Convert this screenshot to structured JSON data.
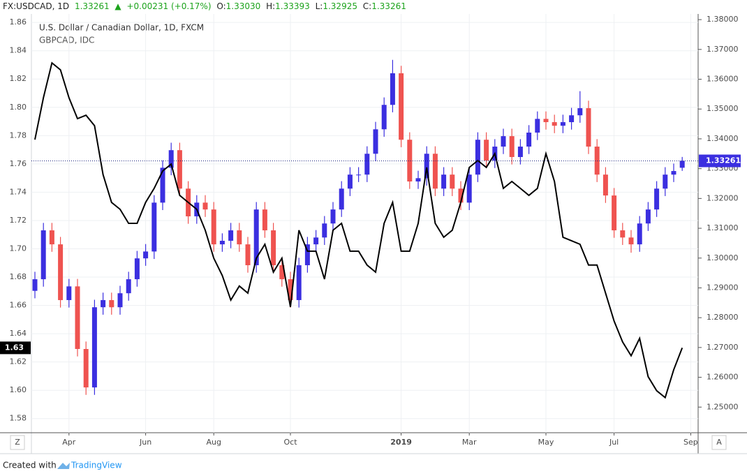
{
  "header": {
    "symbol": "FX:USDCAD, 1D",
    "last": "1.33261",
    "change": "+0.00231 (+0.17%)",
    "o_key": "O:",
    "o": "1.33030",
    "h_key": "H:",
    "h": "1.33393",
    "l_key": "L:",
    "l": "1.32925",
    "c_key": "C:",
    "c": "1.33261"
  },
  "controls": {
    "left_scale": "Z",
    "right_scale": "A"
  },
  "footer": {
    "text": "Created with",
    "brand": "TradingView"
  },
  "chart_data": {
    "type": "candlestick",
    "grid": true,
    "categories": [
      null,
      null,
      null,
      null,
      "Apr",
      null,
      null,
      null,
      null,
      null,
      null,
      null,
      null,
      "Jun",
      null,
      null,
      null,
      null,
      null,
      null,
      null,
      "Aug",
      null,
      null,
      null,
      null,
      null,
      null,
      null,
      null,
      "Oct",
      null,
      null,
      null,
      null,
      null,
      null,
      null,
      null,
      null,
      null,
      null,
      null,
      "2019",
      null,
      null,
      null,
      null,
      null,
      null,
      null,
      "Mar",
      null,
      null,
      null,
      null,
      null,
      null,
      null,
      null,
      "May",
      null,
      null,
      null,
      null,
      null,
      null,
      null,
      "Jul",
      null,
      null,
      null,
      null,
      null,
      null,
      null,
      null,
      "Sep"
    ],
    "ylim": [
      1.57,
      1.866
    ],
    "yticks": [
      1.58,
      {
        "value": 1.6,
        "label": "1.60"
      },
      1.62,
      1.64,
      1.66,
      1.68,
      {
        "value": 1.7,
        "label": "1.70"
      },
      1.72,
      1.74,
      1.76,
      1.78,
      {
        "value": 1.8,
        "label": "1.80"
      },
      1.82,
      1.84,
      1.86
    ],
    "y2lim": [
      1.2414,
      1.3819
    ],
    "y2ticks": [
      {
        "value": 1.25,
        "label": "1.25000"
      },
      {
        "value": 1.26,
        "label": "1.26000"
      },
      {
        "value": 1.27,
        "label": "1.27000"
      },
      {
        "value": 1.28,
        "label": "1.28000"
      },
      {
        "value": 1.29,
        "label": "1.29000"
      },
      {
        "value": 1.3,
        "label": "1.30000"
      },
      {
        "value": 1.31,
        "label": "1.31000"
      },
      {
        "value": 1.32,
        "label": "1.32000"
      },
      {
        "value": 1.33,
        "label": "1.33000"
      },
      {
        "value": 1.34,
        "label": "1.34000"
      },
      {
        "value": 1.35,
        "label": "1.35000"
      },
      {
        "value": 1.36,
        "label": "1.36000"
      },
      {
        "value": 1.37,
        "label": "1.37000"
      },
      {
        "value": 1.38,
        "label": "1.38000"
      }
    ],
    "series": [
      {
        "name": "U.S. Dollar / Canadian Dollar, 1D, FXCM",
        "type": "candlestick",
        "axis": "y2",
        "up_color": "#3b2fe0",
        "down_color": "#ef5350",
        "open": [
          1.289,
          1.2929,
          1.3093,
          1.3046,
          1.2859,
          1.2905,
          1.2695,
          1.2566,
          1.2835,
          1.2859,
          1.2835,
          1.2882,
          1.2929,
          1.2999,
          1.3022,
          1.3186,
          1.3303,
          1.3362,
          1.3233,
          1.314,
          1.3186,
          1.3163,
          1.3046,
          1.3058,
          1.3093,
          1.3046,
          1.2976,
          1.3163,
          1.3093,
          1.2976,
          1.2929,
          1.2859,
          1.2976,
          1.3046,
          1.3069,
          1.3116,
          1.3163,
          1.3233,
          1.328,
          1.328,
          1.335,
          1.3432,
          1.3514,
          1.362,
          1.3397,
          1.3257,
          1.3268,
          1.335,
          1.3233,
          1.328,
          1.3233,
          1.3186,
          1.328,
          1.3397,
          1.3327,
          1.3374,
          1.3409,
          1.3339,
          1.3374,
          1.3421,
          1.3467,
          1.3456,
          1.3444,
          1.3456,
          1.3479,
          1.3503,
          1.3374,
          1.328,
          1.321,
          1.3093,
          1.3069,
          1.3046,
          1.3116,
          1.3163,
          1.3233,
          1.328,
          1.3303,
          null
        ],
        "high": [
          1.2954,
          1.3118,
          1.3118,
          1.3071,
          1.293,
          1.293,
          1.272,
          1.286,
          1.2884,
          1.2884,
          1.2907,
          1.2954,
          1.3024,
          1.3047,
          1.3211,
          1.3328,
          1.3387,
          1.3387,
          1.3258,
          1.3211,
          1.3211,
          1.3188,
          1.3083,
          1.3118,
          1.3118,
          1.3071,
          1.3188,
          1.3188,
          1.3118,
          1.3001,
          1.2954,
          1.3001,
          1.3071,
          1.3094,
          1.3141,
          1.3188,
          1.3258,
          1.3305,
          1.3305,
          1.3375,
          1.3457,
          1.3539,
          1.3665,
          1.3645,
          1.3422,
          1.3293,
          1.3375,
          1.3375,
          1.3305,
          1.3305,
          1.3258,
          1.3305,
          1.3422,
          1.3422,
          1.3399,
          1.3434,
          1.3434,
          1.3399,
          1.3446,
          1.3492,
          1.3492,
          1.3481,
          1.3481,
          1.3504,
          1.356,
          1.3528,
          1.3399,
          1.3305,
          1.3235,
          1.3118,
          1.3094,
          1.3141,
          1.3188,
          1.3258,
          1.3305,
          1.3317,
          1.33393,
          null
        ],
        "low": [
          1.2865,
          1.2904,
          1.3021,
          1.2834,
          1.2834,
          1.267,
          1.2541,
          1.2541,
          1.281,
          1.281,
          1.281,
          1.2857,
          1.2904,
          1.2974,
          1.2997,
          1.3161,
          1.3278,
          1.3208,
          1.3115,
          1.3115,
          1.3138,
          1.3021,
          1.3021,
          1.3033,
          1.3021,
          1.2951,
          1.2951,
          1.3068,
          1.2951,
          1.2904,
          1.2834,
          1.2834,
          1.2951,
          1.3021,
          1.3044,
          1.3091,
          1.3138,
          1.3208,
          1.3255,
          1.3255,
          1.3325,
          1.3407,
          1.3489,
          1.3372,
          1.3232,
          1.3232,
          1.3243,
          1.3208,
          1.3208,
          1.3208,
          1.3161,
          1.3161,
          1.3255,
          1.3302,
          1.3302,
          1.3349,
          1.3314,
          1.3314,
          1.3349,
          1.3396,
          1.3431,
          1.3419,
          1.3419,
          1.3431,
          1.3454,
          1.3349,
          1.3255,
          1.3185,
          1.3068,
          1.3044,
          1.3018,
          1.3021,
          1.3091,
          1.3138,
          1.3208,
          1.3255,
          1.32925,
          null
        ],
        "close": [
          1.2929,
          1.3093,
          1.3046,
          1.2859,
          1.2905,
          1.2695,
          1.2566,
          1.2835,
          1.2859,
          1.2835,
          1.2882,
          1.2929,
          1.2999,
          1.3022,
          1.3186,
          1.3303,
          1.3362,
          1.3233,
          1.314,
          1.3186,
          1.3163,
          1.3046,
          1.3058,
          1.3093,
          1.3046,
          1.2976,
          1.3163,
          1.3093,
          1.2976,
          1.2929,
          1.2859,
          1.2976,
          1.3046,
          1.3069,
          1.3116,
          1.3163,
          1.3233,
          1.328,
          1.328,
          1.335,
          1.3432,
          1.3514,
          1.362,
          1.3397,
          1.3257,
          1.3268,
          1.335,
          1.3233,
          1.328,
          1.3233,
          1.3186,
          1.328,
          1.3397,
          1.3327,
          1.3374,
          1.3409,
          1.3339,
          1.3374,
          1.3421,
          1.3467,
          1.3456,
          1.3444,
          1.3456,
          1.3479,
          1.3503,
          1.3374,
          1.328,
          1.321,
          1.3093,
          1.3069,
          1.3046,
          1.3116,
          1.3163,
          1.3233,
          1.328,
          1.3292,
          1.33261,
          null
        ]
      },
      {
        "name": "GBPCAD, IDC",
        "type": "line",
        "color": "#000000",
        "values": [
          1.7772,
          1.8068,
          1.8314,
          1.8265,
          1.8068,
          1.792,
          1.7944,
          1.787,
          1.7525,
          1.7328,
          1.7279,
          1.718,
          1.718,
          1.7328,
          1.7427,
          1.755,
          1.7599,
          1.7378,
          1.7328,
          1.7279,
          1.7131,
          1.6934,
          1.6811,
          1.6638,
          1.6737,
          1.6687,
          1.6934,
          1.7032,
          1.6835,
          1.6934,
          1.6589,
          1.7131,
          1.6983,
          1.6983,
          1.6786,
          1.7131,
          1.718,
          1.6983,
          1.6983,
          1.6885,
          1.6835,
          1.718,
          1.7328,
          1.6983,
          1.6983,
          1.718,
          1.7575,
          1.718,
          1.7082,
          1.7131,
          1.7328,
          1.7575,
          1.7624,
          1.7575,
          1.7673,
          1.7427,
          1.7476,
          1.7427,
          1.7378,
          1.7427,
          1.7673,
          1.7476,
          1.7082,
          1.7057,
          1.7032,
          1.6885,
          1.6885,
          1.6687,
          1.649,
          1.6342,
          1.6244,
          1.6367,
          1.6096,
          1.5997,
          1.5948,
          1.6145,
          1.63,
          null
        ]
      }
    ]
  }
}
